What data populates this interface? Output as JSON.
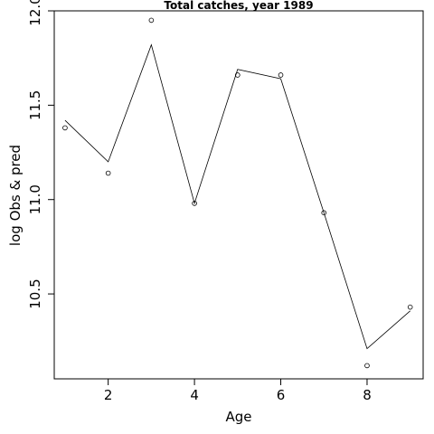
{
  "chart_data": {
    "type": "line",
    "title": "Total catches, year 1989",
    "xlabel": "Age",
    "ylabel": "log Obs & pred",
    "xlim": [
      0.75,
      9.3
    ],
    "ylim": [
      10.05,
      12.0
    ],
    "x_ticks": [
      2,
      4,
      6,
      8
    ],
    "y_ticks": [
      10.5,
      11.0,
      11.5,
      12.0
    ],
    "x_tick_labels": [
      "2",
      "4",
      "6",
      "8"
    ],
    "y_tick_labels": [
      "10.5",
      "11.0",
      "11.5",
      "12.0"
    ],
    "grid": false,
    "series": [
      {
        "kind": "points",
        "x": [
          1,
          2,
          3,
          4,
          5,
          6,
          7,
          8,
          9
        ],
        "y": [
          11.38,
          11.14,
          11.95,
          10.98,
          11.66,
          11.66,
          10.93,
          10.12,
          10.43
        ]
      },
      {
        "kind": "line",
        "x": [
          1,
          2,
          3,
          4,
          5,
          6,
          7,
          8,
          9
        ],
        "y": [
          11.42,
          11.2,
          11.82,
          10.98,
          11.69,
          11.64,
          10.93,
          10.21,
          10.41
        ]
      }
    ]
  }
}
